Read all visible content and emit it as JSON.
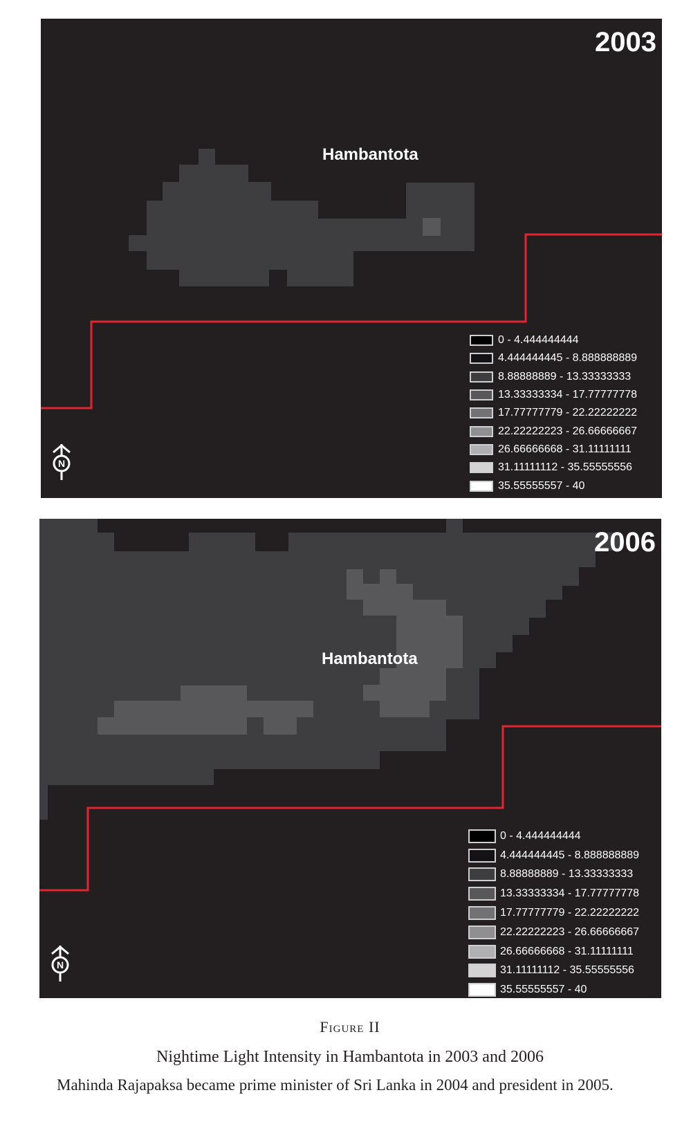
{
  "maps": [
    {
      "year": "2003",
      "place_label": "Hambantota",
      "north_label": "N"
    },
    {
      "year": "2006",
      "place_label": "Hambantota",
      "north_label": "N"
    }
  ],
  "legend": {
    "classes": [
      {
        "label": "0 - 4.444444444",
        "color": "#000000"
      },
      {
        "label": "4.444444445 - 8.888888889",
        "color": "#141214"
      },
      {
        "label": "8.88888889 - 13.33333333",
        "color": "#3e3d3f"
      },
      {
        "label": "13.33333334 - 17.77777778",
        "color": "#58575a"
      },
      {
        "label": "17.77777779 - 22.22222222",
        "color": "#727174"
      },
      {
        "label": "22.22222223 - 26.66666667",
        "color": "#8f8e91"
      },
      {
        "label": "26.66666668 - 31.11111111",
        "color": "#b0b0b2"
      },
      {
        "label": "31.11111112 - 35.55555556",
        "color": "#d3d3d4"
      },
      {
        "label": "35.55555557 - 40",
        "color": "#ffffff"
      }
    ]
  },
  "colors": {
    "background": "#231f20",
    "boundary_line": "#e0262e"
  },
  "caption": {
    "figure_label": "Figure II",
    "title": "Nightime Light Intensity in Hambantota in 2003 and 2006",
    "note": "Mahinda Rajapaksa became prime minister of Sri Lanka in 2004 and president in 2005."
  }
}
